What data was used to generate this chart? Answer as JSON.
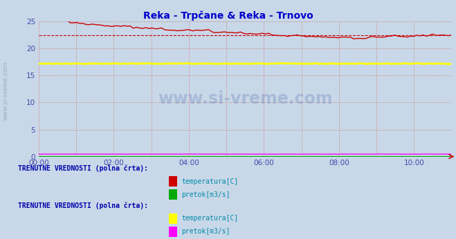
{
  "title": "Reka - Trpčane & Reka - Trnovo",
  "bg_color": "#c8d8e8",
  "fig_bg_color": "#c8d8e8",
  "xmin": 0,
  "xmax": 132,
  "ymin": 0,
  "ymax": 25,
  "yticks": [
    0,
    5,
    10,
    15,
    20,
    25
  ],
  "xtick_positions": [
    0,
    24,
    48,
    72,
    96,
    120
  ],
  "xtick_labels": [
    "00:00",
    "02:00",
    "04:00",
    "06:00",
    "08:00",
    "10:00"
  ],
  "title_color": "#0000cc",
  "title_fontsize": 10,
  "axis_label_color": "#4444aa",
  "watermark_color": "#2a4a9a",
  "grid_color": "#d09090",
  "station1": {
    "temp_color": "#cc0000",
    "temp_dash_color": "#cc0000",
    "pretok_color": "#00aa00",
    "temp_current": 22.5,
    "pretok_value": 0.05
  },
  "station2": {
    "temp_color": "#ffff00",
    "temp_dash_color": "#ffff00",
    "pretok_color": "#ff00ff",
    "temp_value": 17.2,
    "temp_current": 17.3,
    "pretok_value": 0.45
  },
  "legend_text_color": "#0000aa",
  "legend_label_color": "#0088aa",
  "left_label_color": "#8899bb",
  "legend1_items": [
    {
      "color": "#cc0000",
      "label": "temperatura[C]"
    },
    {
      "color": "#00aa00",
      "label": "pretok[m3/s]"
    }
  ],
  "legend2_items": [
    {
      "color": "#ffff00",
      "label": "temperatura[C]"
    },
    {
      "color": "#ff00ff",
      "label": "pretok[m3/s]"
    }
  ]
}
